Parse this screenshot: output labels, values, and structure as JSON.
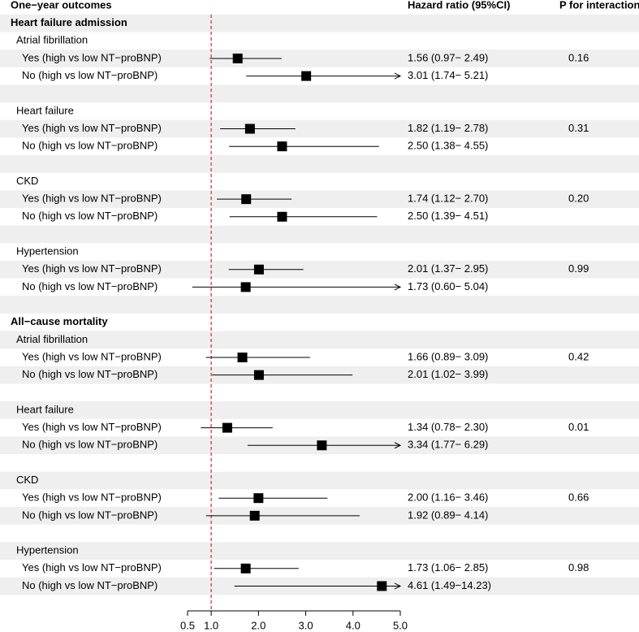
{
  "chart_data": {
    "type": "forest",
    "header": {
      "label": "One−year outcomes",
      "estimate": "Hazard ratio (95%CI)",
      "p": "P for interaction"
    },
    "xlim": [
      0.5,
      5.0
    ],
    "xticks": [
      0.5,
      {
        "value": 1,
        "label": "1.0"
      },
      {
        "value": 2,
        "label": "2.0"
      },
      {
        "value": 3,
        "label": "3.0"
      },
      {
        "value": 4,
        "label": "4.0"
      },
      {
        "value": 5,
        "label": "5.0"
      }
    ],
    "ref_line": 1,
    "ref_color": "#d62728",
    "color": "#000000",
    "stripe_color": "#efefef",
    "outcomes": [
      {
        "name": "Heart failure admission",
        "subgroups": [
          {
            "name": "Atrial fibrillation",
            "p": "0.16",
            "rows": [
              {
                "label": "Yes (high vs low NT−proBNP)",
                "value": 1.56,
                "lower": 0.97,
                "upper": 2.49,
                "value_label": "1.56 (0.97− 2.49)"
              },
              {
                "label": "No (high vs low NT−proBNP)",
                "value": 3.01,
                "lower": 1.74,
                "upper": 5.21,
                "value_label": "3.01 (1.74− 5.21)"
              }
            ]
          },
          {
            "name": "Heart failure",
            "p": "0.31",
            "rows": [
              {
                "label": "Yes (high vs low NT−proBNP)",
                "value": 1.82,
                "lower": 1.19,
                "upper": 2.78,
                "value_label": "1.82 (1.19− 2.78)"
              },
              {
                "label": "No (high vs low NT−proBNP)",
                "value": 2.5,
                "lower": 1.38,
                "upper": 4.55,
                "value_label": "2.50 (1.38− 4.55)"
              }
            ]
          },
          {
            "name": "CKD",
            "p": "0.20",
            "rows": [
              {
                "label": "Yes (high vs low NT−proBNP)",
                "value": 1.74,
                "lower": 1.12,
                "upper": 2.7,
                "value_label": "1.74 (1.12− 2.70)"
              },
              {
                "label": "No (high vs low NT−proBNP)",
                "value": 2.5,
                "lower": 1.39,
                "upper": 4.51,
                "value_label": "2.50 (1.39− 4.51)"
              }
            ]
          },
          {
            "name": "Hypertension",
            "p": "0.99",
            "rows": [
              {
                "label": "Yes (high vs low NT−proBNP)",
                "value": 2.01,
                "lower": 1.37,
                "upper": 2.95,
                "value_label": "2.01 (1.37− 2.95)"
              },
              {
                "label": "No (high vs low NT−proBNP)",
                "value": 1.73,
                "lower": 0.6,
                "upper": 5.04,
                "value_label": "1.73 (0.60− 5.04)"
              }
            ]
          }
        ]
      },
      {
        "name": "All−cause mortality",
        "subgroups": [
          {
            "name": "Atrial fibrillation",
            "p": "0.42",
            "rows": [
              {
                "label": "Yes (high vs low NT−proBNP)",
                "value": 1.66,
                "lower": 0.89,
                "upper": 3.09,
                "value_label": "1.66 (0.89− 3.09)"
              },
              {
                "label": "No (high vs low NT−proBNP)",
                "value": 2.01,
                "lower": 1.02,
                "upper": 3.99,
                "value_label": "2.01 (1.02− 3.99)"
              }
            ]
          },
          {
            "name": "Heart failure",
            "p": "0.01",
            "rows": [
              {
                "label": "Yes (high vs low NT−proBNP)",
                "value": 1.34,
                "lower": 0.78,
                "upper": 2.3,
                "value_label": "1.34 (0.78− 2.30)"
              },
              {
                "label": "No (high vs low NT−proBNP)",
                "value": 3.34,
                "lower": 1.77,
                "upper": 6.29,
                "value_label": "3.34 (1.77− 6.29)"
              }
            ]
          },
          {
            "name": "CKD",
            "p": "0.66",
            "rows": [
              {
                "label": "Yes (high vs low NT−proBNP)",
                "value": 2.0,
                "lower": 1.16,
                "upper": 3.46,
                "value_label": "2.00 (1.16− 3.46)"
              },
              {
                "label": "No (high vs low NT−proBNP)",
                "value": 1.92,
                "lower": 0.89,
                "upper": 4.14,
                "value_label": "1.92 (0.89− 4.14)"
              }
            ]
          },
          {
            "name": "Hypertension",
            "p": "0.98",
            "rows": [
              {
                "label": "Yes (high vs low NT−proBNP)",
                "value": 1.73,
                "lower": 1.06,
                "upper": 2.85,
                "value_label": "1.73 (1.06− 2.85)"
              },
              {
                "label": "No (high vs low NT−proBNP)",
                "value": 4.61,
                "lower": 1.49,
                "upper": 14.23,
                "value_label": "4.61 (1.49−14.23)"
              }
            ]
          }
        ]
      }
    ]
  }
}
